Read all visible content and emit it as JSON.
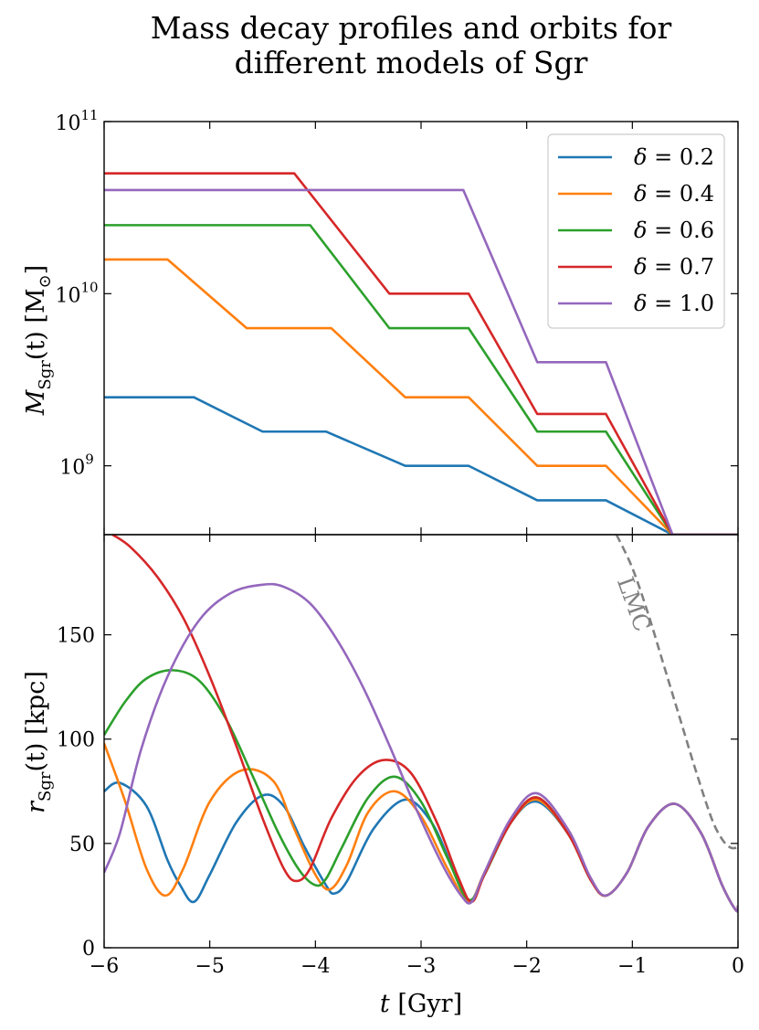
{
  "title_lines": [
    "Mass decay profiles and orbits for",
    "different models of Sgr"
  ],
  "chart_data": [
    {
      "type": "line",
      "yscale": "log",
      "title": "Mass decay profiles and orbits for different models of Sgr",
      "ylabel": "M_Sgr(t) [M_⊙]",
      "ylabel_main": "M",
      "ylabel_sub": "Sgr",
      "ylabel_args": "(t) [M",
      "ylabel_sun": "⊙",
      "ylabel_end": "]",
      "xlim": [
        -6,
        0
      ],
      "ylim": [
        398000000.0,
        100000000000.0
      ],
      "yticks": [
        {
          "value": 1000000000.0,
          "base": "10",
          "exp": "9"
        },
        {
          "value": 10000000000.0,
          "base": "10",
          "exp": "10"
        },
        {
          "value": 100000000000.0,
          "base": "10",
          "exp": "11"
        }
      ],
      "legend_location": "upper right",
      "series": [
        {
          "name": "δ = 0.2",
          "color": "#1f77b4",
          "x": [
            -6,
            -5.15,
            -4.5,
            -3.9,
            -3.15,
            -2.55,
            -1.9,
            -1.25,
            -0.62,
            0
          ],
          "y": [
            2500000000.0,
            2500000000.0,
            1580000000.0,
            1580000000.0,
            1000000000.0,
            1000000000.0,
            630000000.0,
            630000000.0,
            398000000.0,
            398000000.0
          ]
        },
        {
          "name": "δ = 0.4",
          "color": "#ff7f0e",
          "x": [
            -6,
            -5.4,
            -4.65,
            -3.85,
            -3.15,
            -2.55,
            -1.9,
            -1.25,
            -0.62,
            0
          ],
          "y": [
            15800000000.0,
            15800000000.0,
            6300000000.0,
            6300000000.0,
            2500000000.0,
            2500000000.0,
            1000000000.0,
            1000000000.0,
            398000000.0,
            398000000.0
          ]
        },
        {
          "name": "δ = 0.6",
          "color": "#2ca02c",
          "x": [
            -6,
            -4.05,
            -3.3,
            -2.55,
            -1.9,
            -1.25,
            -0.62,
            0
          ],
          "y": [
            25000000000.0,
            25000000000.0,
            6300000000.0,
            6300000000.0,
            1580000000.0,
            1580000000.0,
            398000000.0,
            398000000.0
          ]
        },
        {
          "name": "δ = 0.7",
          "color": "#d62728",
          "x": [
            -6,
            -4.2,
            -3.3,
            -2.55,
            -1.9,
            -1.25,
            -0.62,
            0
          ],
          "y": [
            50000000000.0,
            50000000000.0,
            10000000000.0,
            10000000000.0,
            2000000000.0,
            2000000000.0,
            398000000.0,
            398000000.0
          ]
        },
        {
          "name": "δ = 1.0",
          "color": "#9467bd",
          "x": [
            -6,
            -2.6,
            -1.9,
            -1.25,
            -0.62,
            0
          ],
          "y": [
            40000000000.0,
            40000000000.0,
            4000000000.0,
            4000000000.0,
            398000000.0,
            398000000.0
          ]
        }
      ],
      "legend_entries": [
        {
          "symbol": "δ",
          "value": "= 0.2",
          "color": "#1f77b4"
        },
        {
          "symbol": "δ",
          "value": "= 0.4",
          "color": "#ff7f0e"
        },
        {
          "symbol": "δ",
          "value": "= 0.6",
          "color": "#2ca02c"
        },
        {
          "symbol": "δ",
          "value": "= 0.7",
          "color": "#d62728"
        },
        {
          "symbol": "δ",
          "value": "= 1.0",
          "color": "#9467bd"
        }
      ]
    },
    {
      "type": "line",
      "xlabel": "t [Gyr]",
      "xlabel_main": "t",
      "xlabel_unit": " [Gyr]",
      "ylabel": "r_Sgr(t) [kpc]",
      "ylabel_main": "r",
      "ylabel_sub": "Sgr",
      "ylabel_args": "(t) [kpc]",
      "xlim": [
        -6,
        0
      ],
      "ylim": [
        0,
        198
      ],
      "xticks": [
        -6,
        -5,
        -4,
        -3,
        -2,
        -1,
        0
      ],
      "xtick_labels": [
        "−6",
        "−5",
        "−4",
        "−3",
        "−2",
        "−1",
        "0"
      ],
      "yticks": [
        0,
        50,
        100,
        150
      ],
      "ytick_labels": [
        "0",
        "50",
        "100",
        "150"
      ],
      "annotations": [
        {
          "text": "LMC",
          "near_x": -1.1,
          "near_y": 170,
          "rotation_deg": 70
        }
      ],
      "series": [
        {
          "name": "δ = 0.2",
          "color": "#1f77b4",
          "x": [
            -6,
            -5.85,
            -5.6,
            -5.4,
            -5.28,
            -5.15,
            -5.0,
            -4.75,
            -4.5,
            -4.3,
            -4.1,
            -3.9,
            -3.82,
            -3.7,
            -3.45,
            -3.15,
            -2.9,
            -2.7,
            -2.55,
            -2.4,
            -2.15,
            -1.9,
            -1.6,
            -1.4,
            -1.25,
            -1.05,
            -0.85,
            -0.6,
            -0.35,
            -0.15,
            -0.02,
            0
          ],
          "y": [
            75,
            79,
            68,
            42,
            30,
            22,
            35,
            60,
            73,
            68,
            48,
            30,
            26,
            32,
            57,
            71,
            60,
            38,
            22,
            35,
            60,
            70,
            54,
            33,
            25,
            36,
            58,
            69,
            55,
            30,
            18,
            20
          ]
        },
        {
          "name": "δ = 0.4",
          "color": "#ff7f0e",
          "x": [
            -6,
            -5.8,
            -5.6,
            -5.42,
            -5.25,
            -5.0,
            -4.7,
            -4.4,
            -4.2,
            -4.0,
            -3.86,
            -3.7,
            -3.5,
            -3.25,
            -3.0,
            -2.75,
            -2.55,
            -2.4,
            -2.15,
            -1.9,
            -1.6,
            -1.4,
            -1.25,
            -1.05,
            -0.85,
            -0.6,
            -0.35,
            -0.15,
            -0.02,
            0
          ],
          "y": [
            98,
            70,
            38,
            25,
            38,
            70,
            85,
            80,
            57,
            35,
            28,
            40,
            65,
            75,
            63,
            38,
            22,
            36,
            60,
            71,
            54,
            33,
            25,
            36,
            58,
            69,
            55,
            30,
            18,
            20
          ]
        },
        {
          "name": "δ = 0.6",
          "color": "#2ca02c",
          "x": [
            -6,
            -5.8,
            -5.6,
            -5.35,
            -5.1,
            -4.85,
            -4.6,
            -4.35,
            -4.15,
            -4.0,
            -3.9,
            -3.75,
            -3.5,
            -3.25,
            -3.0,
            -2.75,
            -2.55,
            -2.4,
            -2.15,
            -1.9,
            -1.6,
            -1.4,
            -1.25,
            -1.05,
            -0.85,
            -0.6,
            -0.35,
            -0.15,
            -0.02,
            0
          ],
          "y": [
            102,
            118,
            129,
            133,
            128,
            110,
            83,
            55,
            37,
            30,
            33,
            48,
            72,
            82,
            70,
            43,
            23,
            35,
            60,
            72,
            54,
            33,
            25,
            36,
            58,
            69,
            55,
            30,
            18,
            20
          ]
        },
        {
          "name": "δ = 0.7",
          "color": "#d62728",
          "x": [
            -5.92,
            -5.75,
            -5.5,
            -5.25,
            -5.0,
            -4.75,
            -4.5,
            -4.3,
            -4.18,
            -4.05,
            -3.85,
            -3.6,
            -3.35,
            -3.1,
            -2.85,
            -2.65,
            -2.52,
            -2.4,
            -2.15,
            -1.9,
            -1.6,
            -1.4,
            -1.25,
            -1.05,
            -0.85,
            -0.6,
            -0.35,
            -0.15,
            -0.02,
            0
          ],
          "y": [
            198,
            192,
            178,
            158,
            130,
            97,
            62,
            38,
            32,
            38,
            62,
            82,
            90,
            84,
            60,
            34,
            22,
            35,
            60,
            72,
            54,
            33,
            25,
            36,
            58,
            69,
            55,
            30,
            18,
            20
          ]
        },
        {
          "name": "δ = 1.0",
          "color": "#9467bd",
          "x": [
            -6,
            -5.85,
            -5.65,
            -5.4,
            -5.1,
            -4.8,
            -4.5,
            -4.3,
            -4.05,
            -3.8,
            -3.55,
            -3.3,
            -3.05,
            -2.8,
            -2.62,
            -2.52,
            -2.4,
            -2.15,
            -1.9,
            -1.6,
            -1.4,
            -1.25,
            -1.05,
            -0.85,
            -0.6,
            -0.35,
            -0.15,
            -0.02,
            0
          ],
          "y": [
            36,
            55,
            95,
            130,
            157,
            170,
            174,
            173,
            165,
            148,
            125,
            97,
            67,
            40,
            25,
            22,
            36,
            62,
            74,
            56,
            34,
            25,
            36,
            58,
            69,
            55,
            30,
            18,
            20
          ]
        },
        {
          "name": "LMC",
          "color": "#808080",
          "dashed": true,
          "x": [
            -1.15,
            -1.0,
            -0.85,
            -0.7,
            -0.55,
            -0.4,
            -0.25,
            -0.15,
            -0.07,
            0
          ],
          "y": [
            198,
            182,
            160,
            135,
            110,
            85,
            62,
            52,
            48,
            48
          ]
        }
      ]
    }
  ]
}
